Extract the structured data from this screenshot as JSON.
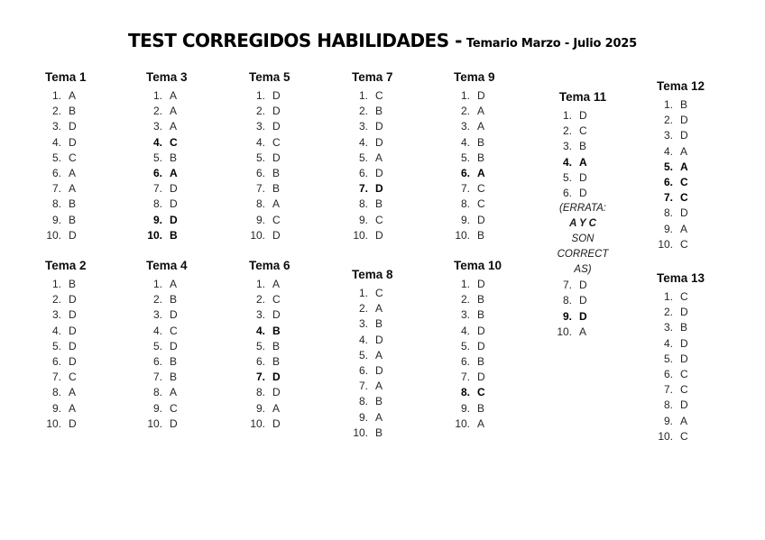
{
  "title": {
    "main": "TEST CORREGIDOS HABILIDADES -",
    "sub": "Temario Marzo - Julio 2025"
  },
  "text_color": "#262626",
  "background_color": "#ffffff",
  "temas": [
    {
      "label": "Tema 1",
      "answers": [
        {
          "a": "A",
          "bold": false
        },
        {
          "a": "B",
          "bold": false
        },
        {
          "a": "D",
          "bold": false
        },
        {
          "a": "D",
          "bold": false
        },
        {
          "a": "C",
          "bold": false
        },
        {
          "a": "A",
          "bold": false
        },
        {
          "a": "A",
          "bold": false
        },
        {
          "a": "B",
          "bold": false
        },
        {
          "a": "B",
          "bold": false
        },
        {
          "a": "D",
          "bold": false
        }
      ]
    },
    {
      "label": "Tema 2",
      "answers": [
        {
          "a": "B",
          "bold": false
        },
        {
          "a": "D",
          "bold": false
        },
        {
          "a": "D",
          "bold": false
        },
        {
          "a": "D",
          "bold": false
        },
        {
          "a": "D",
          "bold": false
        },
        {
          "a": "D",
          "bold": false
        },
        {
          "a": "C",
          "bold": false
        },
        {
          "a": "A",
          "bold": false
        },
        {
          "a": "A",
          "bold": false
        },
        {
          "a": "D",
          "bold": false
        }
      ]
    },
    {
      "label": "Tema 3",
      "answers": [
        {
          "a": "A",
          "bold": false
        },
        {
          "a": "A",
          "bold": false
        },
        {
          "a": "A",
          "bold": false
        },
        {
          "a": "C",
          "bold": true
        },
        {
          "a": "B",
          "bold": false
        },
        {
          "a": "A",
          "bold": true
        },
        {
          "a": "D",
          "bold": false
        },
        {
          "a": "D",
          "bold": false
        },
        {
          "a": "D",
          "bold": true
        },
        {
          "a": "B",
          "bold": true
        }
      ]
    },
    {
      "label": "Tema 4",
      "answers": [
        {
          "a": "A",
          "bold": false
        },
        {
          "a": "B",
          "bold": false
        },
        {
          "a": "D",
          "bold": false
        },
        {
          "a": "C",
          "bold": false
        },
        {
          "a": "D",
          "bold": false
        },
        {
          "a": "B",
          "bold": false
        },
        {
          "a": "B",
          "bold": false
        },
        {
          "a": "A",
          "bold": false
        },
        {
          "a": "C",
          "bold": false
        },
        {
          "a": "D",
          "bold": false
        }
      ]
    },
    {
      "label": "Tema 5",
      "answers": [
        {
          "a": "D",
          "bold": false
        },
        {
          "a": "D",
          "bold": false
        },
        {
          "a": "D",
          "bold": false
        },
        {
          "a": "C",
          "bold": false
        },
        {
          "a": "D",
          "bold": false
        },
        {
          "a": "B",
          "bold": false
        },
        {
          "a": "B",
          "bold": false
        },
        {
          "a": "A",
          "bold": false
        },
        {
          "a": "C",
          "bold": false
        },
        {
          "a": "D",
          "bold": false
        }
      ]
    },
    {
      "label": "Tema 6",
      "answers": [
        {
          "a": "A",
          "bold": false
        },
        {
          "a": "C",
          "bold": false
        },
        {
          "a": "D",
          "bold": false
        },
        {
          "a": "B",
          "bold": true
        },
        {
          "a": "B",
          "bold": false
        },
        {
          "a": "B",
          "bold": false
        },
        {
          "a": "D",
          "bold": true
        },
        {
          "a": "D",
          "bold": false
        },
        {
          "a": "A",
          "bold": false
        },
        {
          "a": "D",
          "bold": false
        }
      ]
    },
    {
      "label": "Tema 7",
      "answers": [
        {
          "a": "C",
          "bold": false
        },
        {
          "a": "B",
          "bold": false
        },
        {
          "a": "D",
          "bold": false
        },
        {
          "a": "D",
          "bold": false
        },
        {
          "a": "A",
          "bold": false
        },
        {
          "a": "D",
          "bold": false
        },
        {
          "a": "D",
          "bold": true
        },
        {
          "a": "B",
          "bold": false
        },
        {
          "a": "C",
          "bold": false
        },
        {
          "a": "D",
          "bold": false
        }
      ]
    },
    {
      "label": "Tema 8",
      "answers": [
        {
          "a": "C",
          "bold": false
        },
        {
          "a": "A",
          "bold": false
        },
        {
          "a": "B",
          "bold": false
        },
        {
          "a": "D",
          "bold": false
        },
        {
          "a": "A",
          "bold": false
        },
        {
          "a": "D",
          "bold": false
        },
        {
          "a": "A",
          "bold": false
        },
        {
          "a": "B",
          "bold": false
        },
        {
          "a": "A",
          "bold": false
        },
        {
          "a": "B",
          "bold": false
        }
      ]
    },
    {
      "label": "Tema 9",
      "answers": [
        {
          "a": "D",
          "bold": false
        },
        {
          "a": "A",
          "bold": false
        },
        {
          "a": "A",
          "bold": false
        },
        {
          "a": "B",
          "bold": false
        },
        {
          "a": "B",
          "bold": false
        },
        {
          "a": "A",
          "bold": true
        },
        {
          "a": "C",
          "bold": false
        },
        {
          "a": "C",
          "bold": false
        },
        {
          "a": "D",
          "bold": false
        },
        {
          "a": "B",
          "bold": false
        }
      ]
    },
    {
      "label": "Tema 10",
      "answers": [
        {
          "a": "D",
          "bold": false
        },
        {
          "a": "B",
          "bold": false
        },
        {
          "a": "B",
          "bold": false
        },
        {
          "a": "D",
          "bold": false
        },
        {
          "a": "D",
          "bold": false
        },
        {
          "a": "B",
          "bold": false
        },
        {
          "a": "D",
          "bold": false
        },
        {
          "a": "C",
          "bold": true
        },
        {
          "a": "B",
          "bold": false
        },
        {
          "a": "A",
          "bold": false
        }
      ]
    },
    {
      "label": "Tema 11",
      "answers": [
        {
          "a": "D",
          "bold": false
        },
        {
          "a": "C",
          "bold": false
        },
        {
          "a": "B",
          "bold": false
        },
        {
          "a": "A",
          "bold": true
        },
        {
          "a": "D",
          "bold": false
        },
        {
          "a": "D",
          "bold": false
        },
        {
          "a": "D",
          "bold": false
        },
        {
          "a": "D",
          "bold": false
        },
        {
          "a": "D",
          "bold": true
        },
        {
          "a": "A",
          "bold": false
        }
      ],
      "errata_lines": [
        {
          "text": "(ERRATA:",
          "bold": false
        },
        {
          "text": "A Y C",
          "bold": true
        },
        {
          "text": "SON",
          "bold": false
        },
        {
          "text": "CORRECT",
          "bold": false
        },
        {
          "text": "AS)",
          "bold": false
        }
      ]
    },
    {
      "label": "Tema 12",
      "answers": [
        {
          "a": "B",
          "bold": false
        },
        {
          "a": "D",
          "bold": false
        },
        {
          "a": "D",
          "bold": false
        },
        {
          "a": "A",
          "bold": false
        },
        {
          "a": "A",
          "bold": true
        },
        {
          "a": "C",
          "bold": true
        },
        {
          "a": "C",
          "bold": true
        },
        {
          "a": "D",
          "bold": false
        },
        {
          "a": "A",
          "bold": false
        },
        {
          "a": "C",
          "bold": false
        }
      ]
    },
    {
      "label": "Tema 13",
      "answers": [
        {
          "a": "C",
          "bold": false
        },
        {
          "a": "D",
          "bold": false
        },
        {
          "a": "B",
          "bold": false
        },
        {
          "a": "D",
          "bold": false
        },
        {
          "a": "D",
          "bold": false
        },
        {
          "a": "C",
          "bold": false
        },
        {
          "a": "C",
          "bold": false
        },
        {
          "a": "D",
          "bold": false
        },
        {
          "a": "A",
          "bold": false
        },
        {
          "a": "C",
          "bold": false
        }
      ]
    }
  ]
}
